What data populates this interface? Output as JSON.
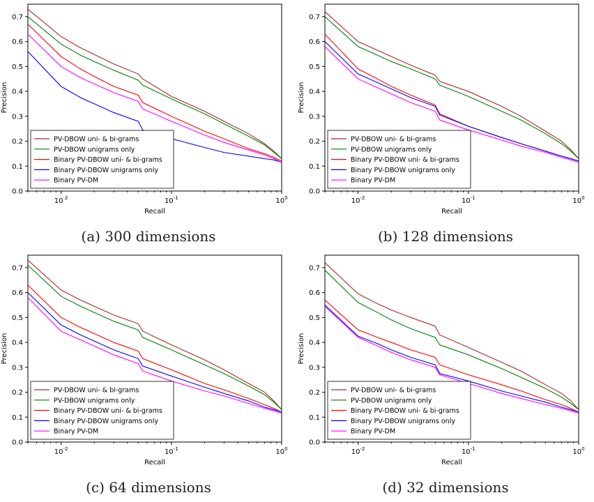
{
  "chart_data": [
    {
      "type": "line",
      "caption": "(a) 300 dimensions",
      "xlabel": "Recall",
      "ylabel": "Precision",
      "xscale": "log",
      "xlim": [
        0.005,
        1.0
      ],
      "ylim": [
        0.0,
        0.75
      ],
      "xticks": [
        "10^-2",
        "10^-1",
        "10^0"
      ],
      "yticks": [
        "0.0",
        "0.1",
        "0.2",
        "0.3",
        "0.4",
        "0.5",
        "0.6",
        "0.7"
      ],
      "legend_position": "lower-left",
      "series": [
        {
          "name": "PV-DBOW uni- & bi-grams",
          "color": "#a52a2a",
          "x": [
            0.005,
            0.01,
            0.015,
            0.02,
            0.03,
            0.05,
            0.055,
            0.1,
            0.2,
            0.3,
            0.5,
            0.7,
            0.85,
            1.0
          ],
          "y": [
            0.73,
            0.62,
            0.575,
            0.548,
            0.51,
            0.47,
            0.45,
            0.38,
            0.32,
            0.28,
            0.23,
            0.19,
            0.16,
            0.13
          ]
        },
        {
          "name": "PV-DBOW unigrams only",
          "color": "#008000",
          "x": [
            0.005,
            0.01,
            0.015,
            0.02,
            0.03,
            0.05,
            0.055,
            0.1,
            0.2,
            0.3,
            0.5,
            0.7,
            0.85,
            1.0
          ],
          "y": [
            0.7,
            0.59,
            0.545,
            0.52,
            0.485,
            0.445,
            0.425,
            0.37,
            0.31,
            0.27,
            0.22,
            0.185,
            0.155,
            0.13
          ]
        },
        {
          "name": "Binary PV-DBOW uni- & bi-grams",
          "color": "#ff0000",
          "x": [
            0.005,
            0.01,
            0.015,
            0.02,
            0.03,
            0.05,
            0.055,
            0.1,
            0.2,
            0.3,
            0.5,
            0.7,
            0.85,
            1.0
          ],
          "y": [
            0.67,
            0.54,
            0.49,
            0.46,
            0.42,
            0.385,
            0.355,
            0.3,
            0.24,
            0.21,
            0.17,
            0.15,
            0.135,
            0.12
          ]
        },
        {
          "name": "Binary PV-DBOW unigrams only",
          "color": "#0000ff",
          "x": [
            0.005,
            0.01,
            0.015,
            0.02,
            0.03,
            0.05,
            0.055,
            0.1,
            0.2,
            0.3,
            0.5,
            0.7,
            0.85,
            1.0
          ],
          "y": [
            0.56,
            0.42,
            0.375,
            0.35,
            0.315,
            0.28,
            0.245,
            0.21,
            0.175,
            0.155,
            0.14,
            0.13,
            0.125,
            0.115
          ]
        },
        {
          "name": "Binary PV-DM",
          "color": "#ff00ff",
          "x": [
            0.005,
            0.01,
            0.015,
            0.02,
            0.03,
            0.05,
            0.055,
            0.1,
            0.2,
            0.3,
            0.5,
            0.7,
            0.85,
            1.0
          ],
          "y": [
            0.63,
            0.5,
            0.455,
            0.43,
            0.395,
            0.36,
            0.33,
            0.28,
            0.225,
            0.195,
            0.165,
            0.145,
            0.13,
            0.115
          ]
        }
      ]
    },
    {
      "type": "line",
      "caption": "(b) 128 dimensions",
      "xlabel": "Recall",
      "ylabel": "Precision",
      "xscale": "log",
      "xlim": [
        0.005,
        1.0
      ],
      "ylim": [
        0.0,
        0.75
      ],
      "xticks": [
        "10^-2",
        "10^-1",
        "10^0"
      ],
      "yticks": [
        "0.0",
        "0.1",
        "0.2",
        "0.3",
        "0.4",
        "0.5",
        "0.6",
        "0.7"
      ],
      "legend_position": "lower-left",
      "series": [
        {
          "name": "PV-DBOW uni- & bi-grams",
          "color": "#a52a2a",
          "x": [
            0.005,
            0.01,
            0.015,
            0.02,
            0.03,
            0.05,
            0.055,
            0.1,
            0.2,
            0.3,
            0.5,
            0.7,
            0.85,
            1.0
          ],
          "y": [
            0.72,
            0.6,
            0.565,
            0.54,
            0.505,
            0.465,
            0.44,
            0.4,
            0.34,
            0.3,
            0.24,
            0.2,
            0.165,
            0.13
          ]
        },
        {
          "name": "PV-DBOW unigrams only",
          "color": "#008000",
          "x": [
            0.005,
            0.01,
            0.015,
            0.02,
            0.03,
            0.05,
            0.055,
            0.1,
            0.2,
            0.3,
            0.5,
            0.7,
            0.85,
            1.0
          ],
          "y": [
            0.7,
            0.58,
            0.545,
            0.52,
            0.49,
            0.45,
            0.425,
            0.38,
            0.32,
            0.285,
            0.23,
            0.19,
            0.16,
            0.13
          ]
        },
        {
          "name": "Binary PV-DBOW uni- & bi-grams",
          "color": "#ff0000",
          "x": [
            0.005,
            0.01,
            0.015,
            0.02,
            0.03,
            0.05,
            0.055,
            0.1,
            0.2,
            0.3,
            0.5,
            0.7,
            0.85,
            1.0
          ],
          "y": [
            0.63,
            0.49,
            0.45,
            0.42,
            0.385,
            0.345,
            0.31,
            0.26,
            0.215,
            0.19,
            0.16,
            0.14,
            0.13,
            0.12
          ]
        },
        {
          "name": "Binary PV-DBOW unigrams only",
          "color": "#0000ff",
          "x": [
            0.005,
            0.01,
            0.015,
            0.02,
            0.03,
            0.05,
            0.055,
            0.1,
            0.2,
            0.3,
            0.5,
            0.7,
            0.85,
            1.0
          ],
          "y": [
            0.6,
            0.47,
            0.435,
            0.41,
            0.375,
            0.34,
            0.305,
            0.26,
            0.215,
            0.19,
            0.16,
            0.14,
            0.13,
            0.12
          ]
        },
        {
          "name": "Binary PV-DM",
          "color": "#ff00ff",
          "x": [
            0.005,
            0.01,
            0.015,
            0.02,
            0.03,
            0.05,
            0.055,
            0.1,
            0.2,
            0.3,
            0.5,
            0.7,
            0.85,
            1.0
          ],
          "y": [
            0.58,
            0.45,
            0.415,
            0.39,
            0.355,
            0.32,
            0.285,
            0.245,
            0.205,
            0.18,
            0.155,
            0.135,
            0.125,
            0.115
          ]
        }
      ]
    },
    {
      "type": "line",
      "caption": "(c) 64 dimensions",
      "xlabel": "Recall",
      "ylabel": "Precision",
      "xscale": "log",
      "xlim": [
        0.005,
        1.0
      ],
      "ylim": [
        0.0,
        0.75
      ],
      "xticks": [
        "10^-2",
        "10^-1",
        "10^0"
      ],
      "yticks": [
        "0.0",
        "0.1",
        "0.2",
        "0.3",
        "0.4",
        "0.5",
        "0.6",
        "0.7"
      ],
      "legend_position": "lower-left",
      "series": [
        {
          "name": "PV-DBOW uni- & bi-grams",
          "color": "#a52a2a",
          "x": [
            0.005,
            0.01,
            0.015,
            0.02,
            0.03,
            0.05,
            0.055,
            0.1,
            0.2,
            0.3,
            0.5,
            0.7,
            0.85,
            1.0
          ],
          "y": [
            0.73,
            0.61,
            0.57,
            0.545,
            0.51,
            0.475,
            0.445,
            0.39,
            0.33,
            0.29,
            0.235,
            0.2,
            0.165,
            0.13
          ]
        },
        {
          "name": "PV-DBOW unigrams only",
          "color": "#008000",
          "x": [
            0.005,
            0.01,
            0.015,
            0.02,
            0.03,
            0.05,
            0.055,
            0.1,
            0.2,
            0.3,
            0.5,
            0.7,
            0.85,
            1.0
          ],
          "y": [
            0.71,
            0.585,
            0.545,
            0.52,
            0.485,
            0.45,
            0.42,
            0.37,
            0.31,
            0.275,
            0.225,
            0.19,
            0.16,
            0.13
          ]
        },
        {
          "name": "Binary PV-DBOW uni- & bi-grams",
          "color": "#ff0000",
          "x": [
            0.005,
            0.01,
            0.015,
            0.02,
            0.03,
            0.05,
            0.055,
            0.1,
            0.2,
            0.3,
            0.5,
            0.7,
            0.85,
            1.0
          ],
          "y": [
            0.63,
            0.5,
            0.46,
            0.435,
            0.4,
            0.365,
            0.335,
            0.29,
            0.235,
            0.21,
            0.175,
            0.15,
            0.135,
            0.12
          ]
        },
        {
          "name": "Binary PV-DBOW unigrams only",
          "color": "#0000ff",
          "x": [
            0.005,
            0.01,
            0.015,
            0.02,
            0.03,
            0.05,
            0.055,
            0.1,
            0.2,
            0.3,
            0.5,
            0.7,
            0.85,
            1.0
          ],
          "y": [
            0.6,
            0.47,
            0.43,
            0.405,
            0.37,
            0.335,
            0.305,
            0.265,
            0.22,
            0.195,
            0.165,
            0.14,
            0.13,
            0.12
          ]
        },
        {
          "name": "Binary PV-DM",
          "color": "#ff00ff",
          "x": [
            0.005,
            0.01,
            0.015,
            0.02,
            0.03,
            0.05,
            0.055,
            0.1,
            0.2,
            0.3,
            0.5,
            0.7,
            0.85,
            1.0
          ],
          "y": [
            0.58,
            0.445,
            0.41,
            0.385,
            0.35,
            0.315,
            0.285,
            0.245,
            0.205,
            0.185,
            0.155,
            0.135,
            0.125,
            0.115
          ]
        }
      ]
    },
    {
      "type": "line",
      "caption": "(d) 32 dimensions",
      "xlabel": "Recall",
      "ylabel": "Precision",
      "xscale": "log",
      "xlim": [
        0.005,
        1.0
      ],
      "ylim": [
        0.0,
        0.75
      ],
      "xticks": [
        "10^-2",
        "10^-1",
        "10^0"
      ],
      "yticks": [
        "0.0",
        "0.1",
        "0.2",
        "0.3",
        "0.4",
        "0.5",
        "0.6",
        "0.7"
      ],
      "legend_position": "lower-left",
      "series": [
        {
          "name": "PV-DBOW uni- & bi-grams",
          "color": "#a52a2a",
          "x": [
            0.005,
            0.01,
            0.015,
            0.02,
            0.03,
            0.05,
            0.055,
            0.1,
            0.2,
            0.3,
            0.5,
            0.7,
            0.85,
            1.0
          ],
          "y": [
            0.72,
            0.595,
            0.555,
            0.53,
            0.5,
            0.465,
            0.43,
            0.38,
            0.32,
            0.285,
            0.23,
            0.195,
            0.165,
            0.13
          ]
        },
        {
          "name": "PV-DBOW unigrams only",
          "color": "#008000",
          "x": [
            0.005,
            0.01,
            0.015,
            0.02,
            0.03,
            0.05,
            0.055,
            0.1,
            0.2,
            0.3,
            0.5,
            0.7,
            0.85,
            1.0
          ],
          "y": [
            0.69,
            0.56,
            0.52,
            0.49,
            0.455,
            0.42,
            0.39,
            0.35,
            0.295,
            0.26,
            0.215,
            0.18,
            0.155,
            0.13
          ]
        },
        {
          "name": "Binary PV-DBOW uni- & bi-grams",
          "color": "#ff0000",
          "x": [
            0.005,
            0.01,
            0.015,
            0.02,
            0.03,
            0.05,
            0.055,
            0.1,
            0.2,
            0.3,
            0.5,
            0.7,
            0.85,
            1.0
          ],
          "y": [
            0.57,
            0.45,
            0.42,
            0.4,
            0.37,
            0.34,
            0.31,
            0.27,
            0.23,
            0.205,
            0.17,
            0.15,
            0.135,
            0.12
          ]
        },
        {
          "name": "Binary PV-DBOW unigrams only",
          "color": "#0000ff",
          "x": [
            0.005,
            0.01,
            0.015,
            0.02,
            0.03,
            0.05,
            0.055,
            0.1,
            0.2,
            0.3,
            0.5,
            0.7,
            0.85,
            1.0
          ],
          "y": [
            0.55,
            0.425,
            0.395,
            0.37,
            0.34,
            0.31,
            0.275,
            0.245,
            0.205,
            0.185,
            0.16,
            0.14,
            0.13,
            0.12
          ]
        },
        {
          "name": "Binary PV-DM",
          "color": "#ff00ff",
          "x": [
            0.005,
            0.01,
            0.015,
            0.02,
            0.03,
            0.05,
            0.055,
            0.1,
            0.2,
            0.3,
            0.5,
            0.7,
            0.85,
            1.0
          ],
          "y": [
            0.545,
            0.42,
            0.385,
            0.36,
            0.33,
            0.3,
            0.27,
            0.235,
            0.195,
            0.175,
            0.15,
            0.135,
            0.125,
            0.115
          ]
        }
      ]
    }
  ]
}
